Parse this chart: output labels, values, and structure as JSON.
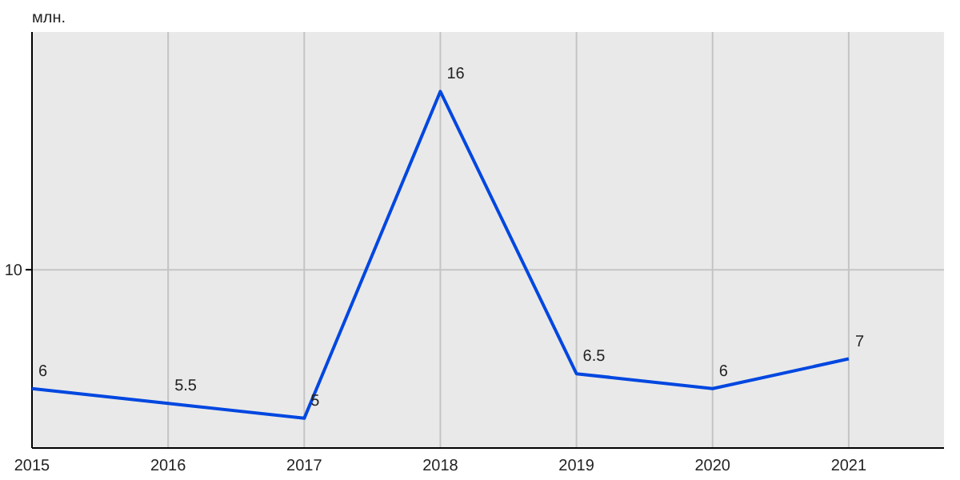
{
  "chart_data": {
    "type": "line",
    "ylabel": "млн.",
    "x": [
      2015,
      2016,
      2017,
      2018,
      2019,
      2020,
      2021
    ],
    "series": [
      {
        "color": "#0047e0",
        "values": [
          6,
          5.5,
          5,
          16,
          6.5,
          6,
          7
        ]
      }
    ],
    "xlim": [
      2015,
      2021.7
    ],
    "xticks": [
      2015,
      2016,
      2017,
      2018,
      2019,
      2020,
      2021
    ],
    "ylim": [
      4,
      18
    ],
    "ref_lines": [
      {
        "axis": "y",
        "value": 10,
        "label": "10",
        "color": "#c4c4c4"
      }
    ],
    "grid": true,
    "data_labels": true,
    "marker": "none",
    "line_style": "solid"
  }
}
